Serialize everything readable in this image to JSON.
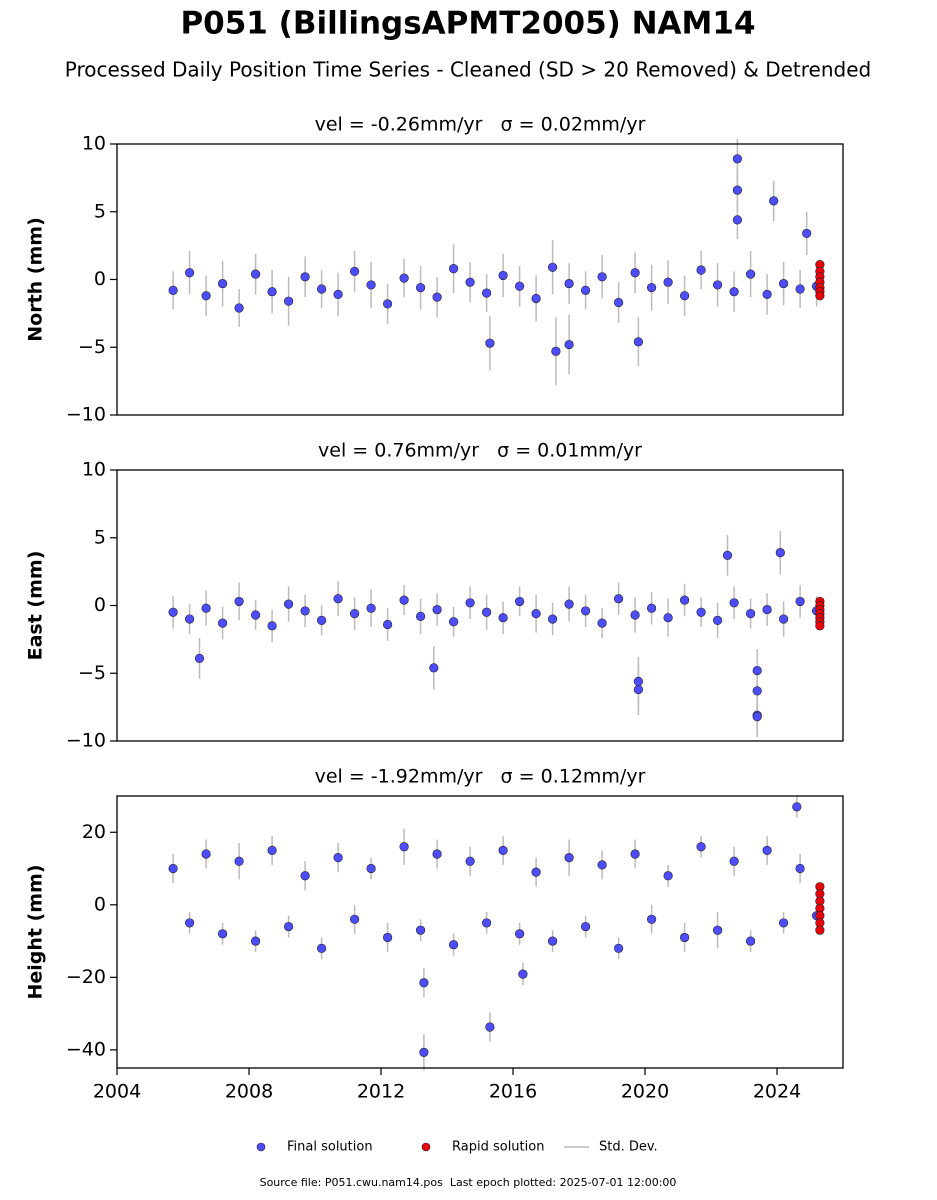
{
  "title": "P051 (BillingsAPMT2005) NAM14",
  "subtitle": "Processed Daily Position Time Series - Cleaned (SD > 20 Removed) & Detrended",
  "footer": "Source file: P051.cwu.nam14.pos  Last epoch plotted: 2025-07-01 12:00:00",
  "chart_data": [
    {
      "type": "scatter",
      "title": "vel = -0.26mm/yr   σ = 0.02mm/yr",
      "y_label": "North (mm)",
      "xlim": [
        2004,
        2026
      ],
      "ylim": [
        -10,
        10
      ],
      "yticks": [
        {
          "value": -10,
          "label": "−10"
        },
        {
          "value": -5,
          "label": "−5"
        },
        0,
        5,
        10
      ],
      "error_label": "Std. Dev.",
      "error_color": "#bbbbbb",
      "series": [
        {
          "name": "Final solution",
          "color": "#4d4dff",
          "x": [
            2005.7,
            2006.2,
            2006.7,
            2007.2,
            2007.7,
            2008.2,
            2008.7,
            2009.2,
            2009.7,
            2010.2,
            2010.7,
            2011.2,
            2011.7,
            2012.2,
            2012.7,
            2013.2,
            2013.7,
            2014.2,
            2014.7,
            2015.2,
            2015.7,
            2016.2,
            2016.7,
            2017.2,
            2017.7,
            2018.2,
            2018.7,
            2019.2,
            2019.7,
            2020.2,
            2020.7,
            2021.2,
            2021.7,
            2022.2,
            2022.7,
            2023.2,
            2023.7,
            2024.2,
            2024.7,
            2025.2,
            2015.3,
            2017.3,
            2017.7,
            2019.8,
            2022.8,
            2022.8,
            2022.8,
            2023.9,
            2024.9
          ],
          "values": [
            -0.8,
            0.5,
            -1.2,
            -0.3,
            -2.1,
            0.4,
            -0.9,
            -1.6,
            0.2,
            -0.7,
            -1.1,
            0.6,
            -0.4,
            -1.8,
            0.1,
            -0.6,
            -1.3,
            0.8,
            -0.2,
            -1.0,
            0.3,
            -0.5,
            -1.4,
            0.9,
            -0.3,
            -0.8,
            0.2,
            -1.7,
            0.5,
            -0.6,
            -0.2,
            -1.2,
            0.7,
            -0.4,
            -0.9,
            0.4,
            -1.1,
            -0.3,
            -0.7,
            -0.5,
            -4.7,
            -5.3,
            -4.8,
            -4.6,
            8.9,
            6.6,
            4.4,
            5.8,
            3.4
          ],
          "errors": [
            1.4,
            1.6,
            1.5,
            1.7,
            1.4,
            1.5,
            1.6,
            1.8,
            1.5,
            1.4,
            1.6,
            1.5,
            1.7,
            1.5,
            1.4,
            1.6,
            1.5,
            1.8,
            1.5,
            1.4,
            1.6,
            1.5,
            1.7,
            2.0,
            1.5,
            1.4,
            1.6,
            1.5,
            1.5,
            1.7,
            1.6,
            1.5,
            1.4,
            1.6,
            1.5,
            1.7,
            1.5,
            1.6,
            1.4,
            1.5,
            2.0,
            2.5,
            2.2,
            1.8,
            1.5,
            1.6,
            1.4,
            1.5,
            1.6
          ]
        },
        {
          "name": "Rapid solution",
          "color": "#e8000b",
          "x": [
            2025.3,
            2025.3,
            2025.3,
            2025.3,
            2025.3,
            2025.3,
            2025.3
          ],
          "values": [
            1.1,
            0.6,
            0.2,
            -0.2,
            -0.6,
            -0.9,
            -1.2
          ]
        }
      ]
    },
    {
      "type": "scatter",
      "title": "vel = 0.76mm/yr   σ = 0.01mm/yr",
      "y_label": "East (mm)",
      "xlim": [
        2004,
        2026
      ],
      "ylim": [
        -10,
        10
      ],
      "yticks": [
        {
          "value": -10,
          "label": "−10"
        },
        {
          "value": -5,
          "label": "−5"
        },
        0,
        5,
        10
      ],
      "error_label": "Std. Dev.",
      "error_color": "#bbbbbb",
      "series": [
        {
          "name": "Final solution",
          "color": "#4d4dff",
          "x": [
            2005.7,
            2006.2,
            2006.7,
            2007.2,
            2007.7,
            2008.2,
            2008.7,
            2009.2,
            2009.7,
            2010.2,
            2010.7,
            2011.2,
            2011.7,
            2012.2,
            2012.7,
            2013.2,
            2013.7,
            2014.2,
            2014.7,
            2015.2,
            2015.7,
            2016.2,
            2016.7,
            2017.2,
            2017.7,
            2018.2,
            2018.7,
            2019.2,
            2019.7,
            2020.2,
            2020.7,
            2021.2,
            2021.7,
            2022.2,
            2022.7,
            2023.2,
            2023.7,
            2024.2,
            2024.7,
            2025.2,
            2006.5,
            2013.6,
            2019.8,
            2019.8,
            2022.5,
            2023.4,
            2023.4,
            2023.4,
            2023.4,
            2024.1
          ],
          "values": [
            -0.5,
            -1.0,
            -0.2,
            -1.3,
            0.3,
            -0.7,
            -1.5,
            0.1,
            -0.4,
            -1.1,
            0.5,
            -0.6,
            -0.2,
            -1.4,
            0.4,
            -0.8,
            -0.3,
            -1.2,
            0.2,
            -0.5,
            -0.9,
            0.3,
            -0.6,
            -1.0,
            0.1,
            -0.4,
            -1.3,
            0.5,
            -0.7,
            -0.2,
            -0.9,
            0.4,
            -0.5,
            -1.1,
            0.2,
            -0.6,
            -0.3,
            -1.0,
            0.3,
            -0.4,
            -3.9,
            -4.6,
            -5.6,
            -6.2,
            3.7,
            -4.8,
            -6.3,
            -8.1,
            -8.2,
            3.9
          ],
          "errors": [
            1.2,
            1.1,
            1.3,
            1.2,
            1.4,
            1.1,
            1.2,
            1.3,
            1.2,
            1.1,
            1.3,
            1.2,
            1.4,
            1.2,
            1.1,
            1.3,
            1.2,
            1.1,
            1.2,
            1.3,
            1.2,
            1.1,
            1.4,
            1.2,
            1.3,
            1.2,
            1.1,
            1.2,
            1.3,
            1.2,
            1.4,
            1.2,
            1.1,
            1.3,
            1.2,
            1.1,
            1.2,
            1.3,
            1.2,
            1.1,
            1.5,
            1.6,
            1.8,
            1.9,
            1.5,
            1.6,
            1.7,
            1.4,
            1.5,
            1.6
          ]
        },
        {
          "name": "Rapid solution",
          "color": "#e8000b",
          "x": [
            2025.3,
            2025.3,
            2025.3,
            2025.3,
            2025.3,
            2025.3,
            2025.3
          ],
          "values": [
            0.3,
            0,
            -0.3,
            -0.6,
            -0.9,
            -1.2,
            -1.5
          ]
        }
      ]
    },
    {
      "type": "scatter",
      "title": "vel = -1.92mm/yr   σ = 0.12mm/yr",
      "y_label": "Height (mm)",
      "xlim": [
        2004,
        2026
      ],
      "ylim": [
        -45,
        30
      ],
      "xticks": [
        2004,
        2008,
        2012,
        2016,
        2020,
        2024
      ],
      "yticks": [
        {
          "value": -40,
          "label": "−40"
        },
        {
          "value": -20,
          "label": "−20"
        },
        0,
        20
      ],
      "error_label": "Std. Dev.",
      "error_color": "#bbbbbb",
      "series": [
        {
          "name": "Final solution",
          "color": "#4d4dff",
          "x": [
            2005.7,
            2006.2,
            2006.7,
            2007.2,
            2007.7,
            2008.2,
            2008.7,
            2009.2,
            2009.7,
            2010.2,
            2010.7,
            2011.2,
            2011.7,
            2012.2,
            2012.7,
            2013.2,
            2013.7,
            2014.2,
            2014.7,
            2015.2,
            2015.7,
            2016.2,
            2016.7,
            2017.2,
            2017.7,
            2018.2,
            2018.7,
            2019.2,
            2019.7,
            2020.2,
            2020.7,
            2021.2,
            2021.7,
            2022.2,
            2022.7,
            2023.2,
            2023.7,
            2024.2,
            2024.7,
            2025.2,
            2013.3,
            2013.3,
            2015.3,
            2016.3,
            2024.6
          ],
          "values": [
            10,
            -5,
            14,
            -8,
            12,
            -10,
            15,
            -6,
            8,
            -12,
            13,
            -4,
            10,
            -9,
            16,
            -7,
            14,
            -11,
            12,
            -5,
            15,
            -8,
            9,
            -10,
            13,
            -6,
            11,
            -12,
            14,
            -4,
            8,
            -9,
            16,
            -7,
            12,
            -10,
            15,
            -5,
            10,
            -3,
            -40.7,
            -21.5,
            -33.7,
            -19.1,
            27.0
          ],
          "errors": [
            4,
            3,
            4,
            3,
            5,
            3,
            4,
            3,
            4,
            3,
            4,
            4,
            3,
            4,
            5,
            3,
            4,
            3,
            4,
            3,
            4,
            3,
            4,
            3,
            5,
            3,
            4,
            3,
            4,
            4,
            3,
            4,
            3,
            5,
            4,
            3,
            4,
            3,
            4,
            3,
            5,
            4,
            4,
            3,
            3
          ]
        },
        {
          "name": "Rapid solution",
          "color": "#e8000b",
          "x": [
            2025.3,
            2025.3,
            2025.3,
            2025.3,
            2025.3,
            2025.3,
            2025.3
          ],
          "values": [
            5,
            3,
            1,
            -1,
            -3,
            -5,
            -7
          ]
        }
      ]
    }
  ]
}
